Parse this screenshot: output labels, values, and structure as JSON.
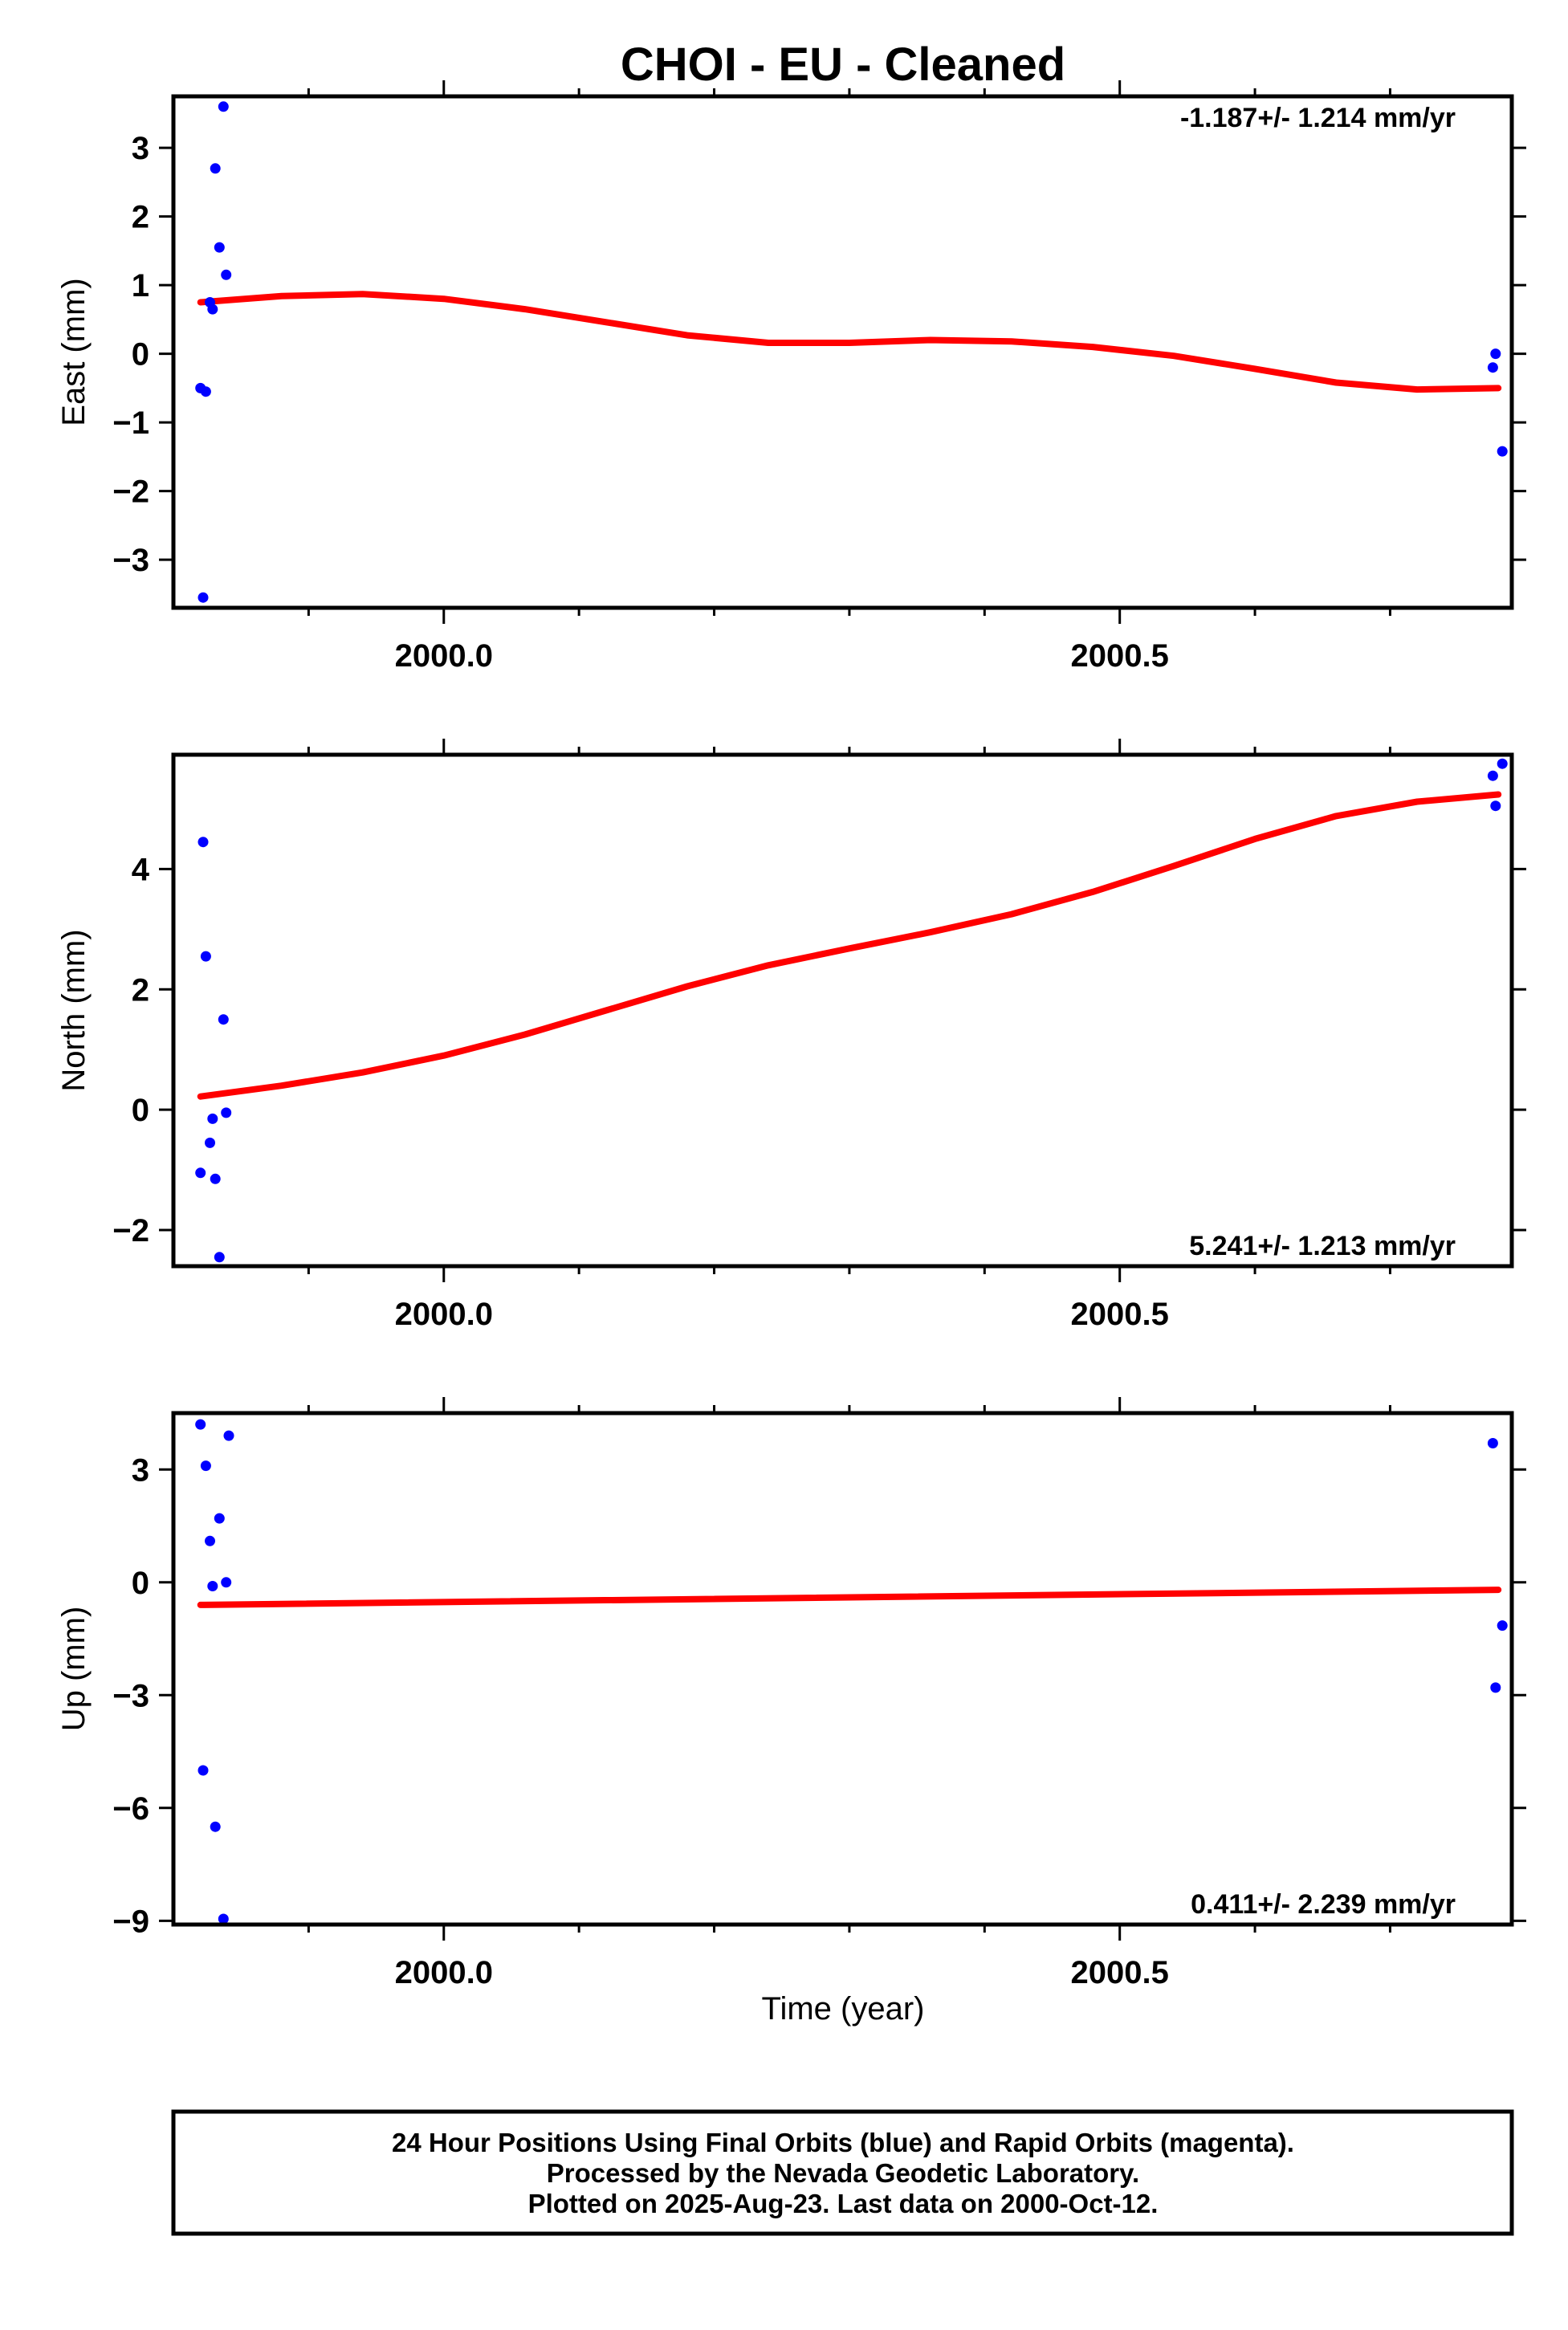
{
  "colors": {
    "points": "#0000ff",
    "fit": "#ff0000",
    "frame": "#000000"
  },
  "chart_data": {
    "type": "scatter",
    "title": "CHOI  - EU - Cleaned",
    "xlabel": "Time (year)",
    "xlim": [
      1999.8,
      2000.79
    ],
    "x_ticks": [
      2000.0,
      2000.5
    ],
    "x_tick_labels": [
      "2000.0",
      "2000.5"
    ],
    "x_minor_ticks": [
      1999.9,
      2000.1,
      2000.2,
      2000.3,
      2000.4,
      2000.6,
      2000.7
    ],
    "grid": false,
    "panels": [
      {
        "name": "east",
        "ylabel": "East (mm)",
        "ylim": [
          -3.7,
          3.75
        ],
        "y_ticks": [
          -3,
          -2,
          -1,
          0,
          1,
          2,
          3
        ],
        "y_tick_labels": [
          "−3",
          "−2",
          "−1",
          "0",
          "1",
          "2",
          "3"
        ],
        "rate": "-1.187+/- 1.214 mm/yr",
        "rate_position": "top-right",
        "points": {
          "x": [
            1999.82,
            1999.822,
            1999.824,
            1999.827,
            1999.829,
            1999.831,
            1999.834,
            1999.837,
            1999.839,
            2000.776,
            2000.778,
            2000.783
          ],
          "y": [
            -0.5,
            -3.55,
            -0.55,
            0.75,
            0.65,
            2.7,
            1.55,
            3.6,
            1.15,
            -0.2,
            0.0,
            -1.42
          ]
        },
        "fit": {
          "x": [
            1999.82,
            1999.88,
            1999.94,
            2000.0,
            2000.06,
            2000.12,
            2000.18,
            2000.24,
            2000.3,
            2000.36,
            2000.42,
            2000.48,
            2000.54,
            2000.6,
            2000.66,
            2000.72,
            2000.78
          ],
          "y": [
            0.75,
            0.84,
            0.87,
            0.8,
            0.65,
            0.46,
            0.27,
            0.16,
            0.16,
            0.2,
            0.18,
            0.1,
            -0.03,
            -0.22,
            -0.42,
            -0.52,
            -0.5
          ]
        }
      },
      {
        "name": "north",
        "ylabel": "North (mm)",
        "ylim": [
          -2.6,
          5.9
        ],
        "y_ticks": [
          -2,
          0,
          2,
          4
        ],
        "y_tick_labels": [
          "−2",
          "0",
          "2",
          "4"
        ],
        "rate": "5.241+/- 1.213 mm/yr",
        "rate_position": "bottom-right",
        "points": {
          "x": [
            1999.82,
            1999.822,
            1999.824,
            1999.827,
            1999.829,
            1999.831,
            1999.834,
            1999.837,
            1999.839,
            2000.776,
            2000.778,
            2000.783
          ],
          "y": [
            -1.05,
            4.45,
            2.55,
            -0.55,
            -0.15,
            -1.15,
            -2.45,
            1.5,
            -0.05,
            5.55,
            5.05,
            5.75
          ]
        },
        "fit": {
          "x": [
            1999.82,
            1999.88,
            1999.94,
            2000.0,
            2000.06,
            2000.12,
            2000.18,
            2000.24,
            2000.3,
            2000.36,
            2000.42,
            2000.48,
            2000.54,
            2000.6,
            2000.66,
            2000.72,
            2000.78
          ],
          "y": [
            0.22,
            0.4,
            0.62,
            0.9,
            1.25,
            1.65,
            2.05,
            2.4,
            2.68,
            2.95,
            3.25,
            3.62,
            4.05,
            4.5,
            4.88,
            5.12,
            5.24
          ]
        }
      },
      {
        "name": "up",
        "ylabel": "Up (mm)",
        "ylim": [
          -9.1,
          4.5
        ],
        "y_ticks": [
          -9,
          -6,
          -3,
          0,
          3
        ],
        "y_tick_labels": [
          "−9",
          "−6",
          "−3",
          "0",
          "3"
        ],
        "rate": "0.411+/- 2.239 mm/yr",
        "rate_position": "bottom-right",
        "points": {
          "x": [
            1999.82,
            1999.822,
            1999.824,
            1999.827,
            1999.829,
            1999.831,
            1999.834,
            1999.837,
            1999.839,
            1999.841,
            2000.776,
            2000.778,
            2000.783
          ],
          "y": [
            4.2,
            -5.0,
            3.1,
            1.1,
            -0.1,
            -6.5,
            1.7,
            -8.95,
            0.0,
            3.9,
            3.7,
            -2.8,
            -1.15
          ]
        },
        "fit": {
          "x": [
            1999.82,
            2000.78
          ],
          "y": [
            -0.6,
            -0.2
          ]
        }
      }
    ],
    "footer": [
      "24 Hour Positions Using Final Orbits (blue) and Rapid Orbits (magenta).",
      "Processed by the Nevada Geodetic Laboratory.",
      "Plotted on 2025-Aug-23. Last data on 2000-Oct-12."
    ]
  }
}
